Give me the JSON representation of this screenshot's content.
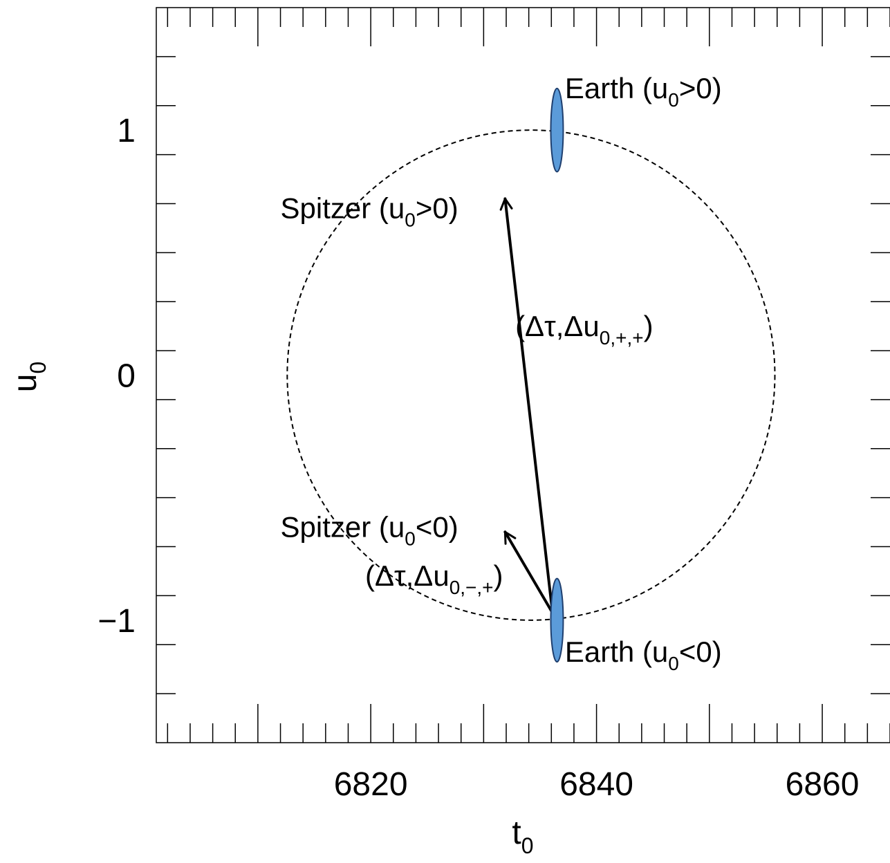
{
  "chart_data": {
    "type": "scatter",
    "title": "",
    "xlabel": {
      "base": "t",
      "sub": "0"
    },
    "ylabel": {
      "base": "u",
      "sub": "0"
    },
    "xlim": [
      6801,
      6866
    ],
    "ylim": [
      -1.5,
      1.5
    ],
    "x_major_ticks": [
      6810,
      6820,
      6830,
      6840,
      6850,
      6860
    ],
    "x_tick_labels": [
      {
        "x": 6820,
        "label": "6820"
      },
      {
        "x": 6840,
        "label": "6840"
      },
      {
        "x": 6860,
        "label": "6860"
      }
    ],
    "x_minor_step": 2,
    "y_major_ticks": [
      -1,
      0,
      1
    ],
    "y_tick_labels": [
      {
        "y": 1,
        "label": "1"
      },
      {
        "y": 0,
        "label": "0"
      },
      {
        "y": -1,
        "label": "−1"
      }
    ],
    "y_minor_step": 0.2,
    "circle": {
      "center_t0": 6834.2,
      "center_u0": 0,
      "radius_t0": 21.6,
      "radius_u0": 1.0,
      "style": "dashed"
    },
    "ellipses": [
      {
        "name": "Earth (u0>0)",
        "t0": 6836.5,
        "u0": 1.0,
        "half_width_t0": 0.55,
        "half_height_u0": 0.17,
        "color": "#5b9bd9"
      },
      {
        "name": "Earth (u0<0)",
        "t0": 6836.5,
        "u0": -1.0,
        "half_width_t0": 0.55,
        "half_height_u0": 0.17,
        "color": "#5b9bd9"
      }
    ],
    "arrows": [
      {
        "from": [
          6836.1,
          -0.97
        ],
        "to": [
          6831.9,
          0.72
        ]
      },
      {
        "from": [
          6836.1,
          -0.97
        ],
        "to": [
          6831.9,
          -0.64
        ]
      }
    ],
    "annotations": [
      {
        "id": "earth_pos",
        "base": "Earth (u",
        "sub": "0",
        "tail": ">0)",
        "t0": 6837.2,
        "u0": 1.13
      },
      {
        "id": "spitzer_pos",
        "base": "Spitzer (u",
        "sub": "0",
        "tail": ">0)",
        "t0": 6812.0,
        "u0": 0.64
      },
      {
        "id": "delta_pp",
        "base": "(Δτ,Δu",
        "sub": "0,+,+",
        "tail": ")",
        "t0": 6832.8,
        "u0": 0.16
      },
      {
        "id": "spitzer_neg",
        "base": "Spitzer (u",
        "sub": "0",
        "tail": "<0)",
        "t0": 6812.0,
        "u0": -0.66
      },
      {
        "id": "delta_mp",
        "base": "(Δτ,Δu",
        "sub": "0,−,+",
        "tail": ")",
        "t0": 6819.5,
        "u0": -0.86
      },
      {
        "id": "earth_neg",
        "base": "Earth (u",
        "sub": "0",
        "tail": "<0)",
        "t0": 6837.2,
        "u0": -1.17
      }
    ]
  }
}
